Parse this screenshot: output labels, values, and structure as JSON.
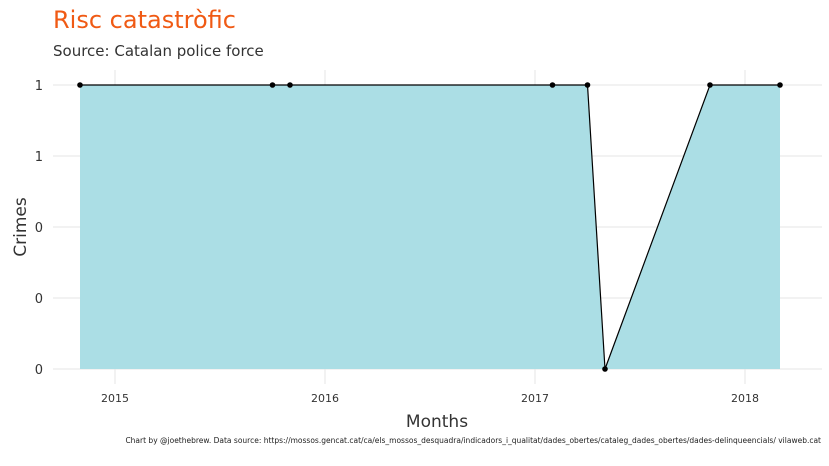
{
  "header": {
    "title": "Risc catastròfic",
    "subtitle": "Source: Catalan police force"
  },
  "caption": "Chart by @joethebrew. Data source: https://mossos.gencat.cat/ca/els_mossos_desquadra/indicadors_i_qualitat/dades_obertes/cataleg_dades_obertes/dades-delinqueencials/ vilaweb.cat",
  "colors": {
    "title": "#f05a14",
    "area_fill": "#abdee5",
    "line": "#000000",
    "grid": "#e5e5e5"
  },
  "chart_data": {
    "type": "area",
    "title": "Risc catastròfic",
    "subtitle": "Source: Catalan police force",
    "xlabel": "Months",
    "ylabel": "Crimes",
    "x": [
      "2014-11",
      "2015-10",
      "2015-11",
      "2017-02",
      "2017-04",
      "2017-05",
      "2017-11",
      "2018-03"
    ],
    "values": [
      1,
      1,
      1,
      1,
      1,
      0,
      1,
      1
    ],
    "ylim": [
      0,
      1
    ],
    "yticks": [
      0,
      0.25,
      0.5,
      0.75,
      1
    ],
    "ytick_labels": [
      "0",
      "0",
      "0",
      "1",
      "1"
    ],
    "xticks": [
      "2015",
      "2016",
      "2017",
      "2018"
    ],
    "grid": true,
    "legend": "none"
  }
}
